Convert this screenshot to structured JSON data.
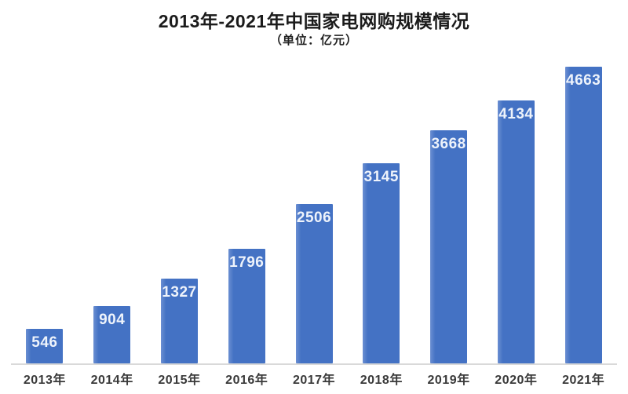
{
  "chart_data": {
    "type": "bar",
    "title": "2013年-2021年中国家电网购规模情况",
    "subtitle": "（单位：亿元）",
    "unit": "亿元",
    "categories": [
      "2013年",
      "2014年",
      "2015年",
      "2016年",
      "2017年",
      "2018年",
      "2019年",
      "2020年",
      "2021年"
    ],
    "values": [
      546,
      904,
      1327,
      1796,
      2506,
      3145,
      3668,
      4134,
      4663
    ],
    "xlabel": "",
    "ylabel": "",
    "ylim": [
      0,
      4800
    ],
    "grid": false,
    "legend": "none",
    "value_labels": "inside-top",
    "colors": {
      "bar": "#4472c4",
      "bar_edge_highlight": "#6b8fd2",
      "value_label": "#eef3fb",
      "axis_line": "#d9d9d9",
      "category_label": "#3a3a3a",
      "title": "#1b1b1b",
      "subtitle": "#222222",
      "background": "#ffffff"
    }
  }
}
